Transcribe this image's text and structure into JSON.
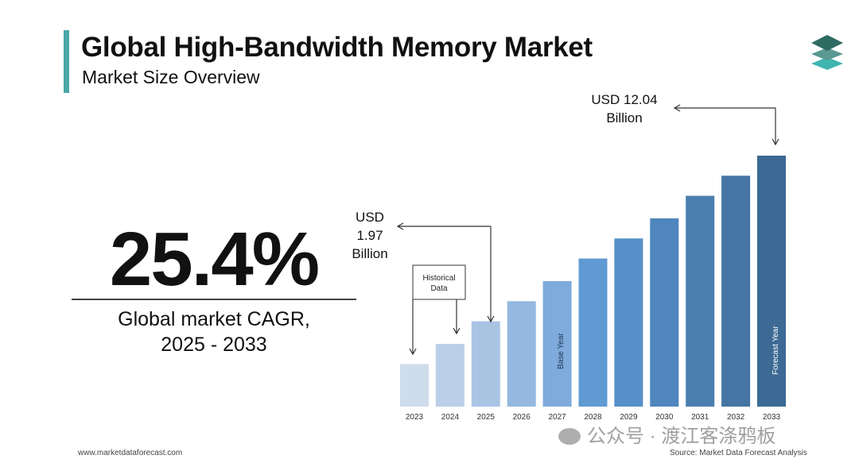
{
  "header": {
    "title": "Global High-Bandwidth Memory Market",
    "subtitle": "Market Size Overview",
    "accent_color": "#4aa8a8",
    "logo_icon": "stacked-layers-icon"
  },
  "kpi": {
    "value": "25.4%",
    "label_line1": "Global market CAGR,",
    "label_line2": "2025 - 2033"
  },
  "chart_data": {
    "type": "bar",
    "categories": [
      "2023",
      "2024",
      "2025",
      "2026",
      "2027",
      "2028",
      "2029",
      "2030",
      "2031",
      "2032",
      "2033"
    ],
    "relative_height": [
      0.17,
      0.25,
      0.34,
      0.42,
      0.5,
      0.59,
      0.67,
      0.75,
      0.84,
      0.92,
      1.0
    ],
    "colors": [
      "#cfdcec",
      "#bccfe8",
      "#aac4e4",
      "#94b8e0",
      "#7eaadc",
      "#5f9ad3",
      "#5690c8",
      "#4e86bd",
      "#4a7eb1",
      "#4475a3",
      "#3c6a94"
    ],
    "annotations": {
      "start_value": {
        "line1": "USD",
        "line2": "1.97",
        "line3": "Billion",
        "category": "2025"
      },
      "end_value": {
        "line1": "USD 12.04",
        "line2": "Billion",
        "category": "2033"
      },
      "historical_label": {
        "line1": "Historical",
        "line2": "Data"
      },
      "base_year_label": "Base Year",
      "forecast_year_label": "Forecast Year"
    }
  },
  "footer": {
    "website": "www.marketdataforecast.com",
    "source": "Source: Market Data Forecast Analysis"
  },
  "watermark": "公众号 · 渡江客涤鸦板"
}
